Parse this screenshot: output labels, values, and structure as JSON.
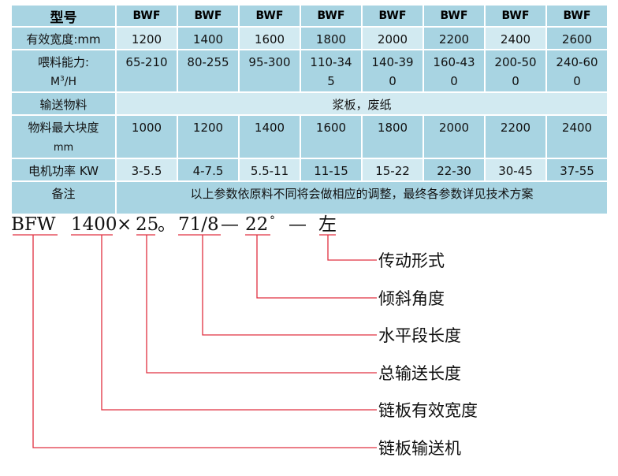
{
  "table": {
    "header": {
      "label": "型号",
      "models": [
        "BWF",
        "BWF",
        "BWF",
        "BWF",
        "BWF",
        "BWF",
        "BWF",
        "BWF"
      ]
    },
    "width": {
      "label": "有效宽度:mm",
      "values": [
        "1200",
        "1400",
        "1600",
        "1800",
        "2000",
        "2200",
        "2400",
        "2600"
      ]
    },
    "capacity": {
      "label": "喂料能力:",
      "unit_main": "M",
      "unit_sup": "3",
      "unit_rest": "/H",
      "values": [
        "65-210",
        "80-255",
        "95-300",
        "110-34 5",
        "140-39 0",
        "160-43 0",
        "200-50 0",
        "240-60 0"
      ]
    },
    "material": {
      "label": "输送物料",
      "value": "浆板，废纸"
    },
    "lump": {
      "label": "物料最大块度",
      "unit": "mm",
      "values": [
        "1000",
        "1200",
        "1400",
        "1600",
        "1800",
        "2000",
        "2200",
        "2400"
      ]
    },
    "power": {
      "label": "电机功率 KW",
      "values": [
        "3-5.5",
        "4-7.5",
        "5.5-11",
        "11-15",
        "15-22",
        "22-30",
        "30-45",
        "37-55"
      ]
    },
    "note": {
      "label": "备注",
      "value": "以上参数依原料不同将会做相应的调整，最终各参数详见技术方案"
    }
  },
  "diagram": {
    "code_parts": [
      "BFW",
      "1400",
      "×",
      "25",
      "。",
      "71/8",
      "—",
      "22",
      "°",
      "—",
      "左"
    ],
    "labels": [
      "传动形式",
      "倾斜角度",
      "水平段长度",
      "总输送长度",
      "链板有效宽度",
      "链板输送机"
    ],
    "line_color": "#e03040"
  }
}
